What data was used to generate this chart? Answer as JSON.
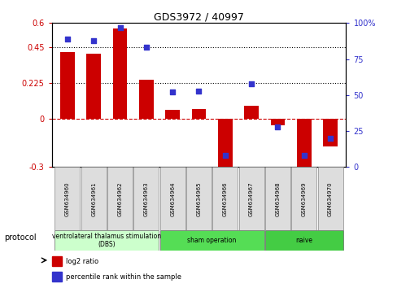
{
  "title": "GDS3972 / 40997",
  "samples": [
    "GSM634960",
    "GSM634961",
    "GSM634962",
    "GSM634963",
    "GSM634964",
    "GSM634965",
    "GSM634966",
    "GSM634967",
    "GSM634968",
    "GSM634969",
    "GSM634970"
  ],
  "log2_ratio": [
    0.42,
    0.41,
    0.565,
    0.245,
    0.06,
    0.065,
    -0.32,
    0.085,
    -0.04,
    -0.32,
    -0.17
  ],
  "percentile_rank": [
    89,
    88,
    97,
    83,
    52,
    53,
    8,
    58,
    28,
    8,
    20
  ],
  "bar_color": "#cc0000",
  "dot_color": "#3333cc",
  "ylim_left": [
    -0.3,
    0.6
  ],
  "ylim_right": [
    0,
    100
  ],
  "yticks_left": [
    -0.3,
    0,
    0.225,
    0.45,
    0.6
  ],
  "yticks_right": [
    0,
    25,
    50,
    75,
    100
  ],
  "hlines": [
    0.225,
    0.45
  ],
  "hline_zero_color": "#cc0000",
  "hlines_color": "black",
  "protocol_groups": [
    {
      "label": "ventrolateral thalamus stimulation\n(DBS)",
      "indices": [
        0,
        1,
        2,
        3
      ],
      "color": "#ccffcc"
    },
    {
      "label": "sham operation",
      "indices": [
        4,
        5,
        6,
        7
      ],
      "color": "#55dd55"
    },
    {
      "label": "naive",
      "indices": [
        8,
        9,
        10
      ],
      "color": "#44cc44"
    }
  ],
  "protocol_label": "protocol",
  "legend_items": [
    {
      "color": "#cc0000",
      "label": "log2 ratio"
    },
    {
      "color": "#3333cc",
      "label": "percentile rank within the sample"
    }
  ],
  "sample_box_color": "#dddddd",
  "figure_bg": "#ffffff"
}
